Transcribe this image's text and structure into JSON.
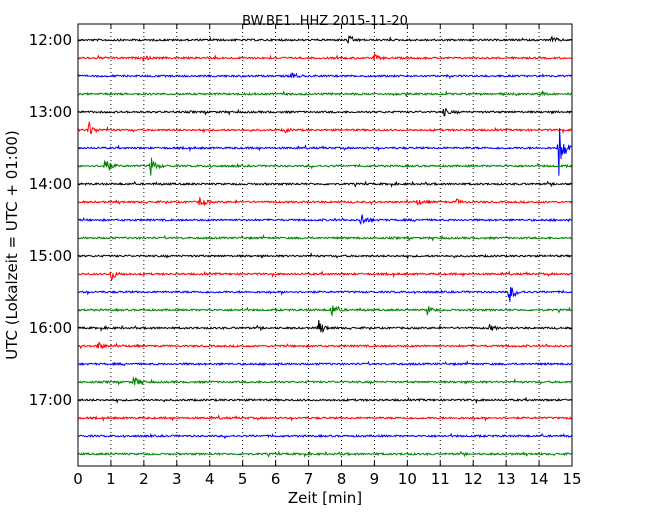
{
  "chart_data": {
    "type": "line",
    "title": "BW.BE1..HHZ 2015-11-20",
    "xlabel": "Zeit  [min]",
    "ylabel": "UTC (Lokalzeit = UTC + 01:00)",
    "xlim": [
      0,
      15
    ],
    "x_ticks": [
      "0",
      "1",
      "2",
      "3",
      "4",
      "5",
      "6",
      "7",
      "8",
      "9",
      "10",
      "11",
      "12",
      "13",
      "14",
      "15"
    ],
    "y_ticks": [
      "12:00",
      "13:00",
      "14:00",
      "15:00",
      "16:00",
      "17:00"
    ],
    "grid": "vertical dotted at each minute",
    "trace_interval_minutes": 15,
    "first_trace": "12:00",
    "trace_colors": [
      "#000000",
      "#ff0000",
      "#0000ff",
      "#008000"
    ],
    "traces": [
      {
        "start": "12:00",
        "events": [
          {
            "x": 8.2,
            "amp": 0.5
          },
          {
            "x": 14.4,
            "amp": 0.5
          }
        ]
      },
      {
        "start": "12:15",
        "events": [
          {
            "x": 2.0,
            "amp": 0.4
          },
          {
            "x": 9.0,
            "amp": 0.5
          }
        ]
      },
      {
        "start": "12:30",
        "events": [
          {
            "x": 6.5,
            "amp": 0.6
          }
        ]
      },
      {
        "start": "12:45",
        "events": [
          {
            "x": 14.0,
            "amp": 0.3
          }
        ]
      },
      {
        "start": "13:00",
        "events": [
          {
            "x": 11.1,
            "amp": 0.6
          }
        ]
      },
      {
        "start": "13:15",
        "events": [
          {
            "x": 0.3,
            "amp": 1.4
          },
          {
            "x": 6.3,
            "amp": 0.3
          }
        ]
      },
      {
        "start": "13:30",
        "events": [
          {
            "x": 14.6,
            "amp": 4.5
          }
        ]
      },
      {
        "start": "13:45",
        "events": [
          {
            "x": 0.8,
            "amp": 1.8
          },
          {
            "x": 2.2,
            "amp": 1.5
          }
        ]
      },
      {
        "start": "14:00",
        "events": []
      },
      {
        "start": "14:15",
        "events": [
          {
            "x": 3.7,
            "amp": 0.9
          },
          {
            "x": 10.3,
            "amp": 0.4
          },
          {
            "x": 11.5,
            "amp": 0.4
          }
        ]
      },
      {
        "start": "14:30",
        "events": [
          {
            "x": 8.6,
            "amp": 1.2
          }
        ]
      },
      {
        "start": "14:45",
        "events": []
      },
      {
        "start": "15:00",
        "events": []
      },
      {
        "start": "15:15",
        "events": [
          {
            "x": 1.0,
            "amp": 1.0
          }
        ]
      },
      {
        "start": "15:30",
        "events": [
          {
            "x": 13.1,
            "amp": 1.6
          }
        ]
      },
      {
        "start": "15:45",
        "events": [
          {
            "x": 7.7,
            "amp": 1.0
          },
          {
            "x": 10.6,
            "amp": 0.7
          }
        ]
      },
      {
        "start": "16:00",
        "events": [
          {
            "x": 7.3,
            "amp": 1.2
          },
          {
            "x": 12.5,
            "amp": 0.5
          }
        ]
      },
      {
        "start": "16:15",
        "events": [
          {
            "x": 0.6,
            "amp": 0.6
          }
        ]
      },
      {
        "start": "16:30",
        "events": []
      },
      {
        "start": "16:45",
        "events": [
          {
            "x": 1.7,
            "amp": 0.8
          }
        ]
      },
      {
        "start": "17:00",
        "events": []
      },
      {
        "start": "17:15",
        "events": []
      },
      {
        "start": "17:30",
        "events": []
      },
      {
        "start": "17:45",
        "events": []
      }
    ]
  }
}
